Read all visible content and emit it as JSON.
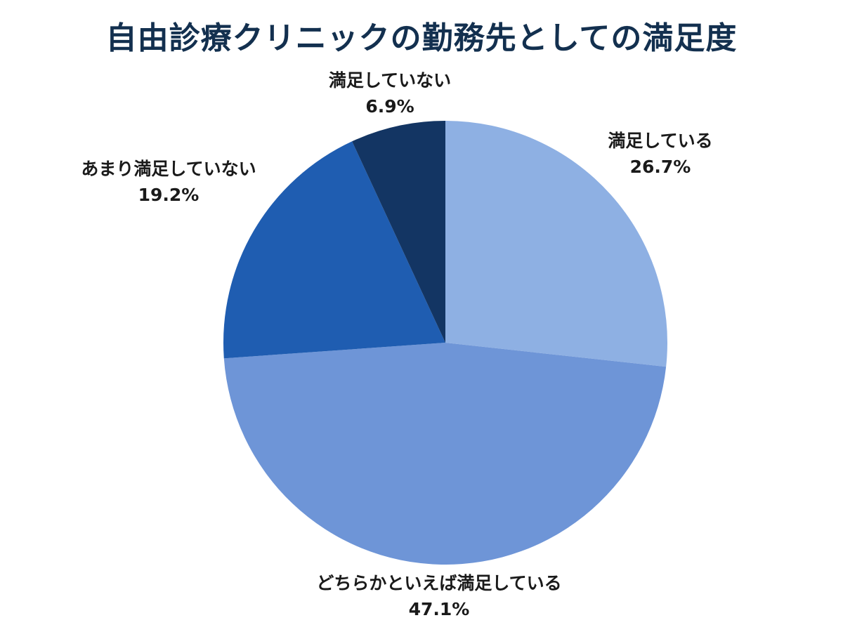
{
  "chart_data": {
    "type": "pie",
    "title": "自由診療クリニックの勤務先としての満足度",
    "slices": [
      {
        "label": "満足している",
        "value": 26.7,
        "display": "26.7%",
        "color": "#8eb0e3"
      },
      {
        "label": "どちらかといえば満足している",
        "value": 47.1,
        "display": "47.1%",
        "color": "#6e95d7"
      },
      {
        "label": "あまり満足していない",
        "value": 19.2,
        "display": "19.2%",
        "color": "#1f5db1"
      },
      {
        "label": "満足していない",
        "value": 6.9,
        "display": "6.9%",
        "color": "#133563"
      }
    ]
  }
}
